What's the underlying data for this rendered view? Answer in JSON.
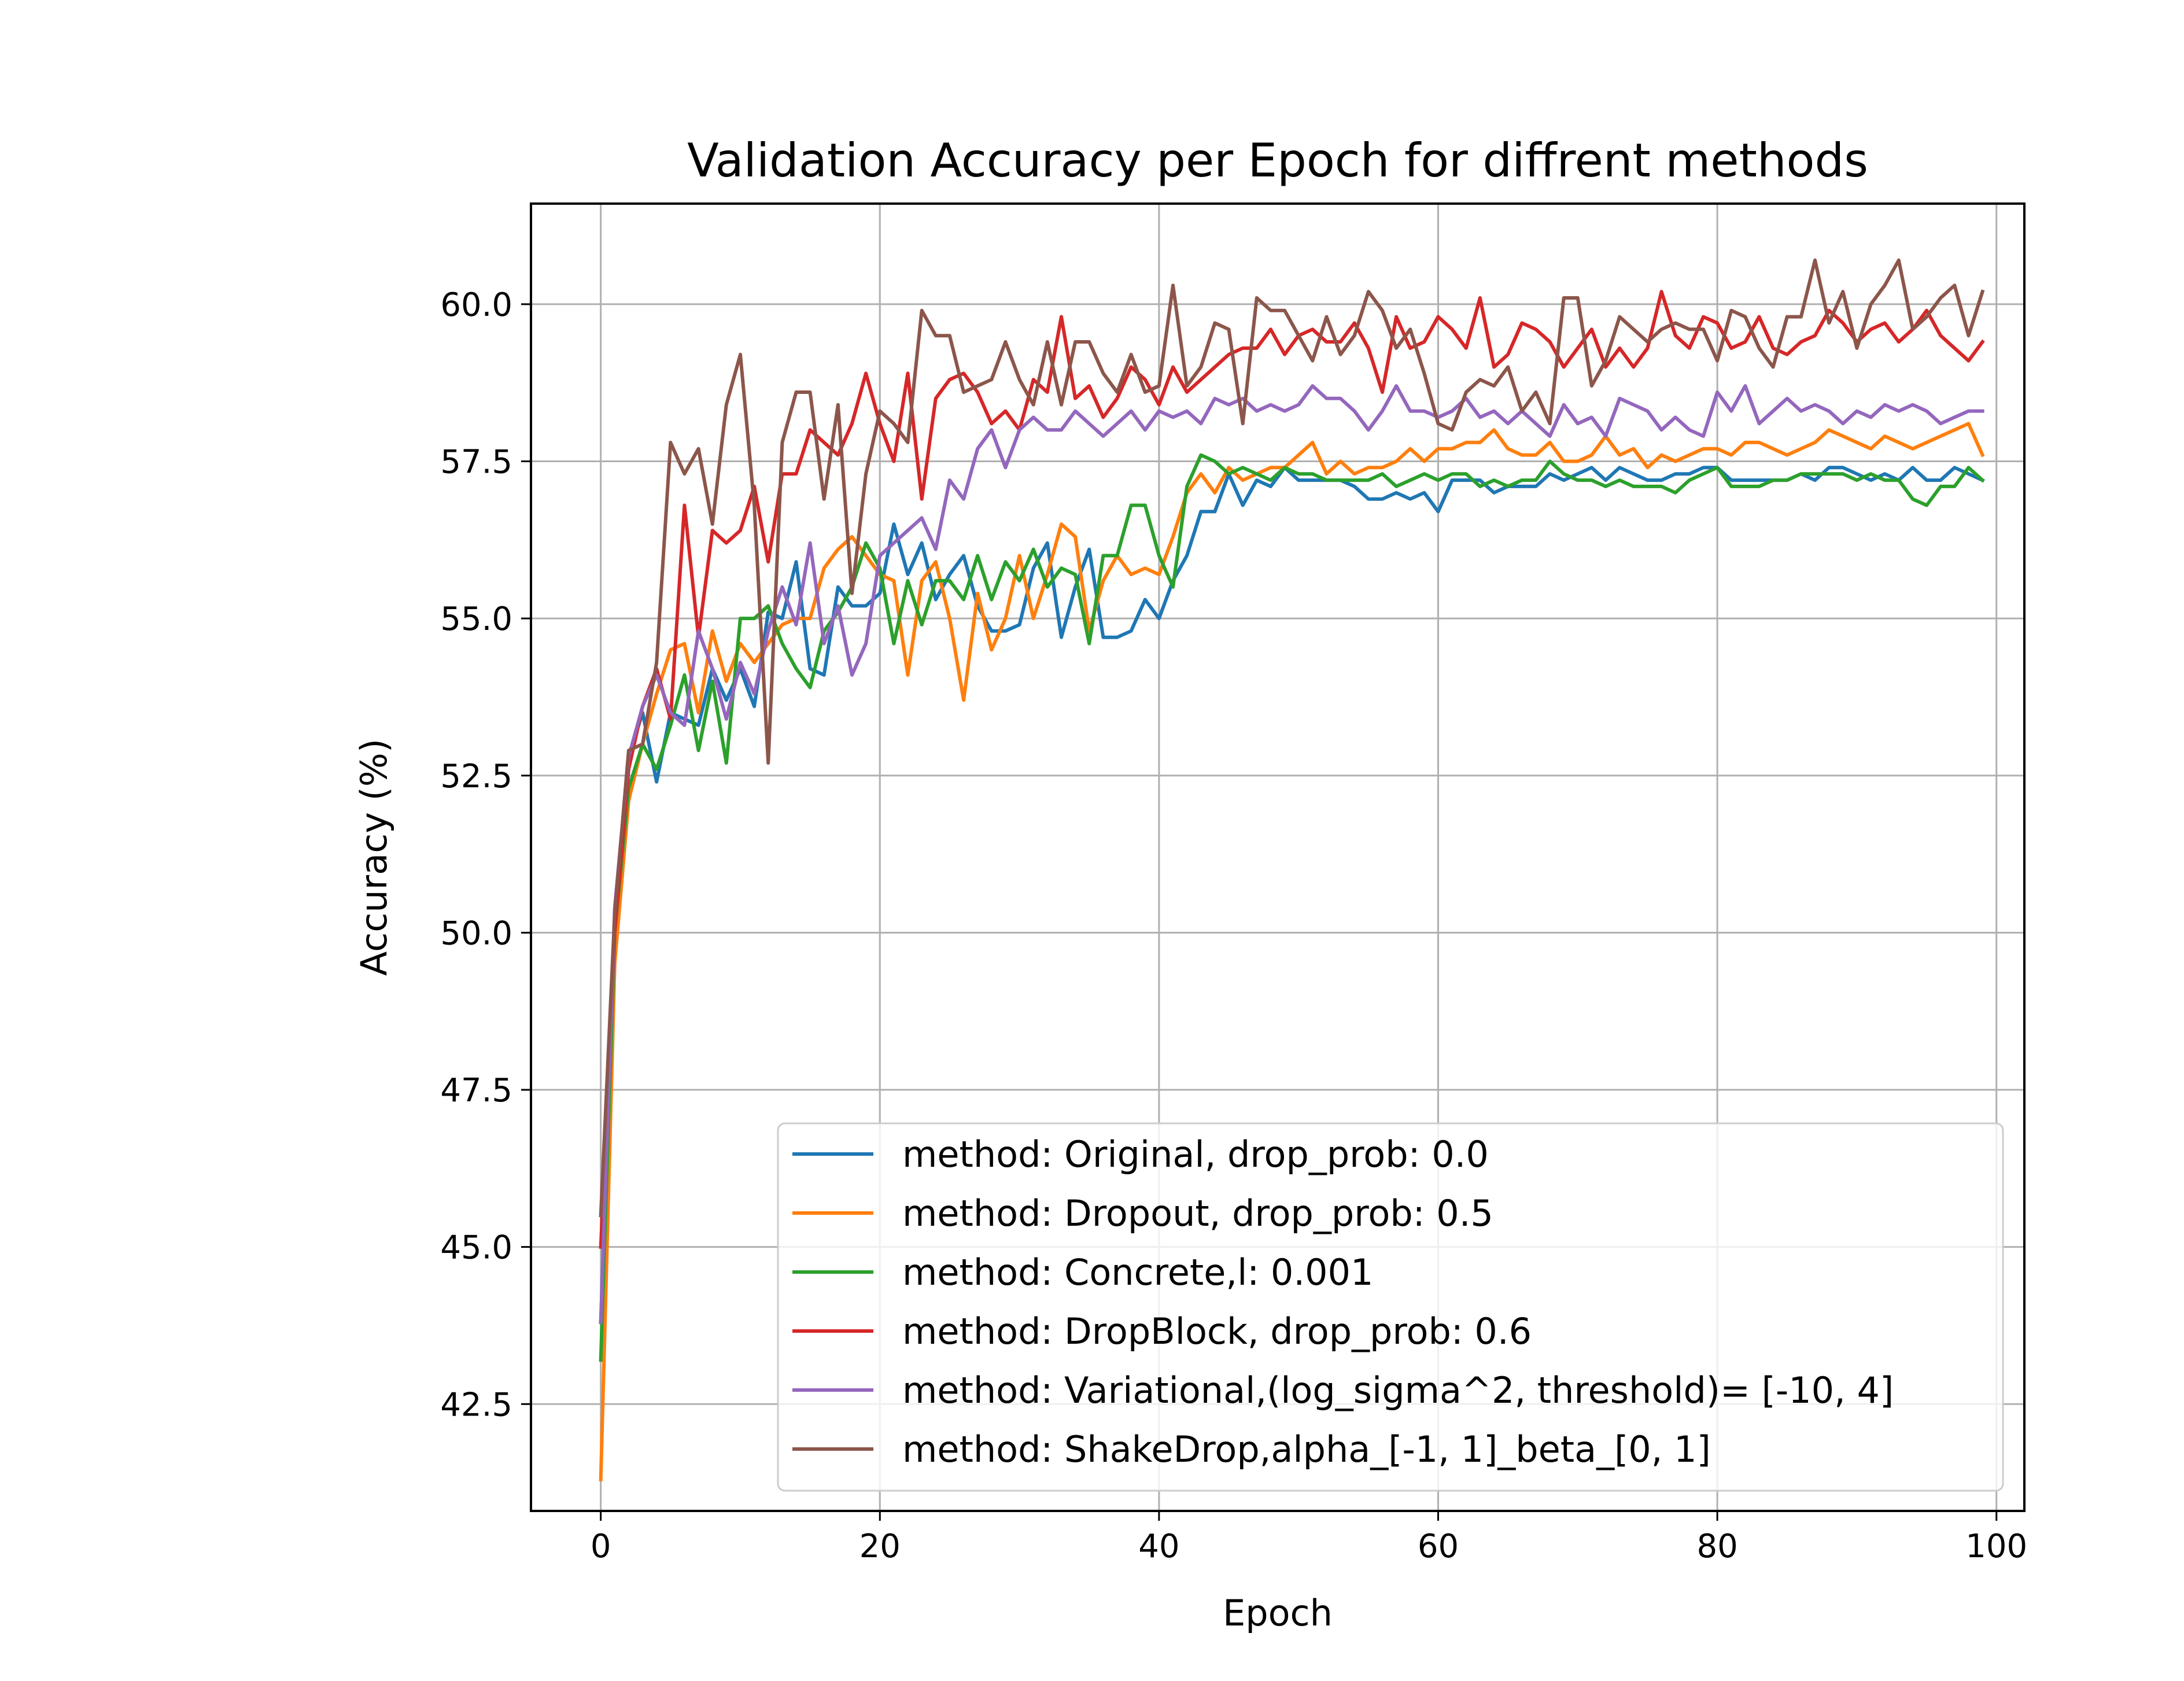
{
  "chart_data": {
    "type": "line",
    "title": "Validation Accuracy per Epoch for diffrent methods",
    "xlabel": "Epoch",
    "ylabel": "Accuracy (%)",
    "xlim": [
      -5,
      102
    ],
    "ylim": [
      40.8,
      61.6
    ],
    "x_ticks": [
      0,
      20,
      40,
      60,
      80,
      100
    ],
    "x_tick_labels": [
      "0",
      "20",
      "40",
      "60",
      "80",
      "100"
    ],
    "y_ticks": [
      42.5,
      45.0,
      47.5,
      50.0,
      52.5,
      55.0,
      57.5,
      60.0
    ],
    "y_tick_labels": [
      "42.5",
      "45.0",
      "47.5",
      "50.0",
      "52.5",
      "55.0",
      "57.5",
      "60.0"
    ],
    "grid": true,
    "legend_position": "lower right",
    "epochs": 100,
    "series": [
      {
        "name": "method: Original, drop_prob: 0.0",
        "color": "#1f77b4",
        "values": [
          43.8,
          50.3,
          52.8,
          53.5,
          52.4,
          53.5,
          53.4,
          53.3,
          54.2,
          53.7,
          54.2,
          53.6,
          55.1,
          55.0,
          55.9,
          54.2,
          54.1,
          55.5,
          55.2,
          55.2,
          55.4,
          56.5,
          55.7,
          56.2,
          55.3,
          55.7,
          56.0,
          55.2,
          54.8,
          54.8,
          54.9,
          55.8,
          56.2,
          54.7,
          55.5,
          56.1,
          54.7,
          54.7,
          54.8,
          55.3,
          55.0,
          55.6,
          56.0,
          56.7,
          56.7,
          57.3,
          56.8,
          57.2,
          57.1,
          57.4,
          57.2,
          57.2,
          57.2,
          57.2,
          57.1,
          56.9,
          56.9,
          57.0,
          56.9,
          57.0,
          56.7,
          57.2,
          57.2,
          57.2,
          57.0,
          57.1,
          57.1,
          57.1,
          57.3,
          57.2,
          57.3,
          57.4,
          57.2,
          57.4,
          57.3,
          57.2,
          57.2,
          57.3,
          57.3,
          57.4,
          57.4,
          57.2,
          57.2,
          57.2,
          57.2,
          57.2,
          57.3,
          57.2,
          57.4,
          57.4,
          57.3,
          57.2,
          57.3,
          57.2,
          57.4,
          57.2,
          57.2,
          57.4,
          57.3,
          57.2
        ]
      },
      {
        "name": "method: Dropout, drop_prob: 0.5",
        "color": "#ff7f0e",
        "values": [
          41.3,
          49.5,
          52.1,
          53.0,
          53.8,
          54.5,
          54.6,
          53.5,
          54.8,
          54.0,
          54.6,
          54.3,
          54.6,
          54.9,
          55.0,
          55.0,
          55.8,
          56.1,
          56.3,
          56.0,
          55.7,
          55.6,
          54.1,
          55.6,
          55.9,
          55.0,
          53.7,
          55.4,
          54.5,
          55.0,
          56.0,
          55.0,
          55.7,
          56.5,
          56.3,
          54.8,
          55.6,
          56.0,
          55.7,
          55.8,
          55.7,
          56.3,
          57.0,
          57.3,
          57.0,
          57.4,
          57.2,
          57.3,
          57.4,
          57.4,
          57.6,
          57.8,
          57.3,
          57.5,
          57.3,
          57.4,
          57.4,
          57.5,
          57.7,
          57.5,
          57.7,
          57.7,
          57.8,
          57.8,
          58.0,
          57.7,
          57.6,
          57.6,
          57.8,
          57.5,
          57.5,
          57.6,
          57.9,
          57.6,
          57.7,
          57.4,
          57.6,
          57.5,
          57.6,
          57.7,
          57.7,
          57.6,
          57.8,
          57.8,
          57.7,
          57.6,
          57.7,
          57.8,
          58.0,
          57.9,
          57.8,
          57.7,
          57.9,
          57.8,
          57.7,
          57.8,
          57.9,
          58.0,
          58.1,
          57.6
        ]
      },
      {
        "name": "method: Concrete,l: 0.001",
        "color": "#2ca02c",
        "values": [
          43.2,
          50.0,
          52.3,
          53.0,
          52.6,
          53.3,
          54.1,
          52.9,
          54.0,
          52.7,
          55.0,
          55.0,
          55.2,
          54.6,
          54.2,
          53.9,
          54.8,
          55.1,
          55.5,
          56.2,
          55.8,
          54.6,
          55.6,
          54.9,
          55.6,
          55.6,
          55.3,
          56.0,
          55.3,
          55.9,
          55.6,
          56.1,
          55.5,
          55.8,
          55.7,
          54.6,
          56.0,
          56.0,
          56.8,
          56.8,
          56.0,
          55.5,
          57.1,
          57.6,
          57.5,
          57.3,
          57.4,
          57.3,
          57.2,
          57.4,
          57.3,
          57.3,
          57.2,
          57.2,
          57.2,
          57.2,
          57.3,
          57.1,
          57.2,
          57.3,
          57.2,
          57.3,
          57.3,
          57.1,
          57.2,
          57.1,
          57.2,
          57.2,
          57.5,
          57.3,
          57.2,
          57.2,
          57.1,
          57.2,
          57.1,
          57.1,
          57.1,
          57.0,
          57.2,
          57.3,
          57.4,
          57.1,
          57.1,
          57.1,
          57.2,
          57.2,
          57.3,
          57.3,
          57.3,
          57.3,
          57.2,
          57.3,
          57.2,
          57.2,
          56.9,
          56.8,
          57.1,
          57.1,
          57.4,
          57.2
        ]
      },
      {
        "name": "method: DropBlock, drop_prob: 0.6",
        "color": "#d62728",
        "values": [
          45.0,
          50.0,
          52.6,
          53.6,
          54.2,
          53.4,
          56.8,
          54.7,
          56.4,
          56.2,
          56.4,
          57.1,
          55.9,
          57.3,
          57.3,
          58.0,
          57.8,
          57.6,
          58.1,
          58.9,
          58.1,
          57.5,
          58.9,
          56.9,
          58.5,
          58.8,
          58.9,
          58.6,
          58.1,
          58.3,
          58.0,
          58.8,
          58.6,
          59.8,
          58.5,
          58.7,
          58.2,
          58.5,
          59.0,
          58.8,
          58.4,
          59.0,
          58.6,
          58.8,
          59.0,
          59.2,
          59.3,
          59.3,
          59.6,
          59.2,
          59.5,
          59.6,
          59.4,
          59.4,
          59.7,
          59.3,
          58.6,
          59.8,
          59.3,
          59.4,
          59.8,
          59.6,
          59.3,
          60.1,
          59.0,
          59.2,
          59.7,
          59.6,
          59.4,
          59.0,
          59.3,
          59.6,
          59.0,
          59.3,
          59.0,
          59.3,
          60.2,
          59.5,
          59.3,
          59.8,
          59.7,
          59.3,
          59.4,
          59.8,
          59.3,
          59.2,
          59.4,
          59.5,
          59.9,
          59.7,
          59.4,
          59.6,
          59.7,
          59.4,
          59.6,
          59.9,
          59.5,
          59.3,
          59.1,
          59.4
        ]
      },
      {
        "name": "method: Variational,(log_sigma^2, threshold)= [-10, 4]",
        "color": "#9467bd",
        "values": [
          43.8,
          50.4,
          52.8,
          53.6,
          54.1,
          53.5,
          53.3,
          54.8,
          54.2,
          53.4,
          54.3,
          53.8,
          54.8,
          55.5,
          54.9,
          56.2,
          54.6,
          55.2,
          54.1,
          54.6,
          56.0,
          56.2,
          56.4,
          56.6,
          56.1,
          57.2,
          56.9,
          57.7,
          58.0,
          57.4,
          58.0,
          58.2,
          58.0,
          58.0,
          58.3,
          58.1,
          57.9,
          58.1,
          58.3,
          58.0,
          58.3,
          58.2,
          58.3,
          58.1,
          58.5,
          58.4,
          58.5,
          58.3,
          58.4,
          58.3,
          58.4,
          58.7,
          58.5,
          58.5,
          58.3,
          58.0,
          58.3,
          58.7,
          58.3,
          58.3,
          58.2,
          58.3,
          58.5,
          58.2,
          58.3,
          58.1,
          58.3,
          58.1,
          57.9,
          58.4,
          58.1,
          58.2,
          57.9,
          58.5,
          58.4,
          58.3,
          58.0,
          58.2,
          58.0,
          57.9,
          58.6,
          58.3,
          58.7,
          58.1,
          58.3,
          58.5,
          58.3,
          58.4,
          58.3,
          58.1,
          58.3,
          58.2,
          58.4,
          58.3,
          58.4,
          58.3,
          58.1,
          58.2,
          58.3,
          58.3
        ]
      },
      {
        "name": "method: ShakeDrop,alpha_[-1, 1]_beta_[0, 1]",
        "color": "#8c564b",
        "values": [
          45.5,
          50.3,
          52.9,
          53.0,
          54.3,
          57.8,
          57.3,
          57.7,
          56.5,
          58.4,
          59.2,
          56.8,
          52.7,
          57.8,
          58.6,
          58.6,
          56.9,
          58.4,
          55.4,
          57.3,
          58.3,
          58.1,
          57.8,
          59.9,
          59.5,
          59.5,
          58.6,
          58.7,
          58.8,
          59.4,
          58.8,
          58.4,
          59.4,
          58.4,
          59.4,
          59.4,
          58.9,
          58.6,
          59.2,
          58.6,
          58.7,
          60.3,
          58.7,
          59.0,
          59.7,
          59.6,
          58.1,
          60.1,
          59.9,
          59.9,
          59.5,
          59.1,
          59.8,
          59.2,
          59.5,
          60.2,
          59.9,
          59.3,
          59.6,
          58.9,
          58.1,
          58.0,
          58.6,
          58.8,
          58.7,
          59.0,
          58.3,
          58.6,
          58.1,
          60.1,
          60.1,
          58.7,
          59.1,
          59.8,
          59.6,
          59.4,
          59.6,
          59.7,
          59.6,
          59.6,
          59.1,
          59.9,
          59.8,
          59.3,
          59.0,
          59.8,
          59.8,
          60.7,
          59.7,
          60.2,
          59.3,
          60.0,
          60.3,
          60.7,
          59.6,
          59.8,
          60.1,
          60.3,
          59.5,
          60.2
        ]
      }
    ]
  }
}
